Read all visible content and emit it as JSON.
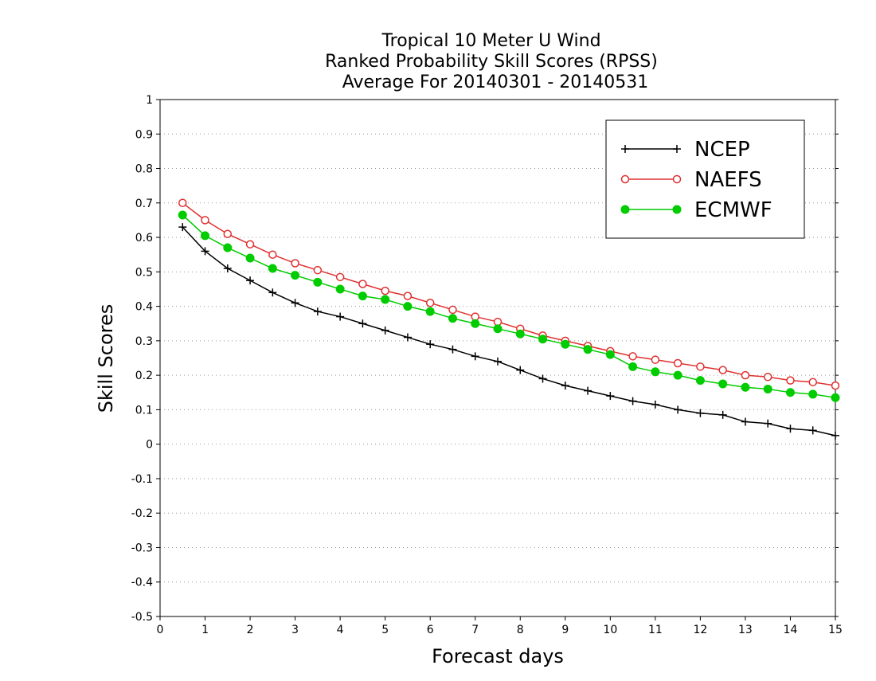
{
  "chart_data": {
    "type": "line",
    "title": [
      "Tropical 10 Meter U Wind",
      "Ranked Probability Skill Scores (RPSS)",
      "Average For 20140301 - 20140531"
    ],
    "xlabel": "Forecast days",
    "ylabel": "Skill Scores",
    "xlim": [
      0,
      15
    ],
    "ylim": [
      -0.5,
      1
    ],
    "xticks": [
      0,
      1,
      2,
      3,
      4,
      5,
      6,
      7,
      8,
      9,
      10,
      11,
      12,
      13,
      14,
      15
    ],
    "yticks": [
      -0.5,
      -0.4,
      -0.3,
      -0.2,
      -0.1,
      0,
      0.1,
      0.2,
      0.3,
      0.4,
      0.5,
      0.6,
      0.7,
      0.8,
      0.9,
      1
    ],
    "grid": "horizontal dotted",
    "legend_position": "top-right",
    "x": [
      0.5,
      1.0,
      1.5,
      2.0,
      2.5,
      3.0,
      3.5,
      4.0,
      4.5,
      5.0,
      5.5,
      6.0,
      6.5,
      7.0,
      7.5,
      8.0,
      8.5,
      9.0,
      9.5,
      10.0,
      10.5,
      11.0,
      11.5,
      12.0,
      12.5,
      13.0,
      13.5,
      14.0,
      14.5,
      15.0
    ],
    "series": [
      {
        "name": "NCEP",
        "color": "#000000",
        "marker": "plus",
        "values": [
          0.63,
          0.56,
          0.51,
          0.475,
          0.44,
          0.41,
          0.385,
          0.37,
          0.35,
          0.33,
          0.31,
          0.29,
          0.275,
          0.255,
          0.24,
          0.215,
          0.19,
          0.17,
          0.155,
          0.14,
          0.125,
          0.115,
          0.1,
          0.09,
          0.085,
          0.065,
          0.06,
          0.045,
          0.04,
          0.025
        ]
      },
      {
        "name": "NAEFS",
        "color": "#e03030",
        "marker": "open-circle",
        "values": [
          0.7,
          0.65,
          0.61,
          0.58,
          0.55,
          0.525,
          0.505,
          0.485,
          0.465,
          0.445,
          0.43,
          0.41,
          0.39,
          0.37,
          0.355,
          0.335,
          0.315,
          0.3,
          0.285,
          0.27,
          0.255,
          0.245,
          0.235,
          0.225,
          0.215,
          0.2,
          0.195,
          0.185,
          0.18,
          0.17
        ]
      },
      {
        "name": "ECMWF",
        "color": "#00cc00",
        "marker": "filled-circle",
        "values": [
          0.665,
          0.605,
          0.57,
          0.54,
          0.51,
          0.49,
          0.47,
          0.45,
          0.43,
          0.42,
          0.4,
          0.385,
          0.365,
          0.35,
          0.335,
          0.32,
          0.305,
          0.29,
          0.275,
          0.26,
          0.225,
          0.21,
          0.2,
          0.185,
          0.175,
          0.165,
          0.16,
          0.15,
          0.145,
          0.135
        ]
      }
    ]
  }
}
